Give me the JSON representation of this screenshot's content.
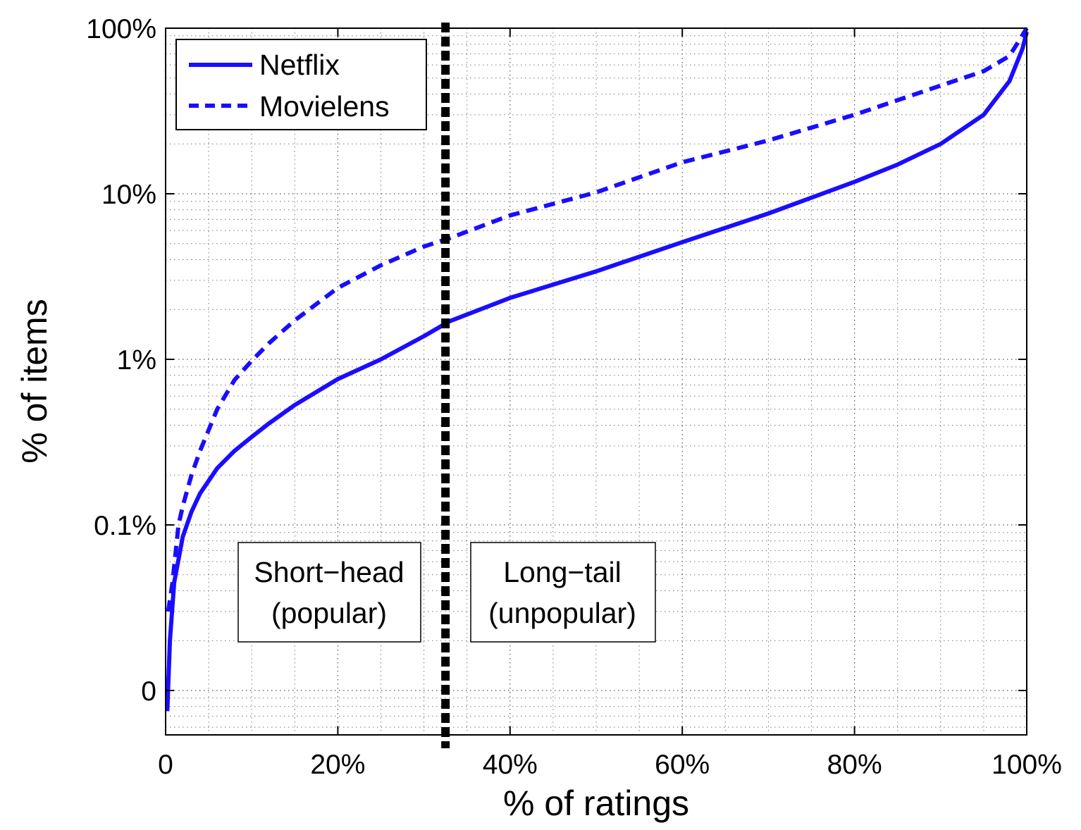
{
  "chart_data": {
    "type": "line",
    "xlabel": "% of ratings",
    "ylabel": "% of items",
    "xlim": [
      0,
      100
    ],
    "ylim_log_decades": [
      -2.15,
      2.0
    ],
    "y_scale": "log",
    "grid": true,
    "legend_position": "top-left",
    "x_ticks": [
      {
        "value": 0,
        "label": "0"
      },
      {
        "value": 20,
        "label": "20%"
      },
      {
        "value": 40,
        "label": "40%"
      },
      {
        "value": 60,
        "label": "60%"
      },
      {
        "value": 80,
        "label": "80%"
      },
      {
        "value": 100,
        "label": "100%"
      }
    ],
    "y_ticks": [
      {
        "value": 100,
        "label": "100%"
      },
      {
        "value": 10,
        "label": "10%"
      },
      {
        "value": 1,
        "label": "1%"
      },
      {
        "value": 0.1,
        "label": "0.1%"
      },
      {
        "value": 0.01,
        "label": "0"
      }
    ],
    "series": [
      {
        "name": "Netflix",
        "style": "solid",
        "color": "#1a0dff",
        "points": [
          [
            0.2,
            0.0075
          ],
          [
            0.5,
            0.02
          ],
          [
            1,
            0.045
          ],
          [
            2,
            0.085
          ],
          [
            3,
            0.12
          ],
          [
            4,
            0.155
          ],
          [
            6,
            0.22
          ],
          [
            8,
            0.28
          ],
          [
            10,
            0.34
          ],
          [
            12,
            0.41
          ],
          [
            15,
            0.53
          ],
          [
            20,
            0.76
          ],
          [
            25,
            1.0
          ],
          [
            30,
            1.38
          ],
          [
            33,
            1.7
          ],
          [
            40,
            2.35
          ],
          [
            50,
            3.4
          ],
          [
            60,
            5.1
          ],
          [
            70,
            7.6
          ],
          [
            80,
            11.8
          ],
          [
            85,
            15.0
          ],
          [
            90,
            20.0
          ],
          [
            95,
            30.0
          ],
          [
            98,
            48.0
          ],
          [
            99.5,
            75.0
          ],
          [
            100,
            95.0
          ]
        ]
      },
      {
        "name": "Movielens",
        "style": "dashed",
        "color": "#1a0dff",
        "points": [
          [
            0.3,
            0.03
          ],
          [
            0.8,
            0.045
          ],
          [
            1.5,
            0.1
          ],
          [
            2,
            0.13
          ],
          [
            3,
            0.2
          ],
          [
            4,
            0.28
          ],
          [
            6,
            0.5
          ],
          [
            8,
            0.75
          ],
          [
            10,
            0.98
          ],
          [
            12,
            1.25
          ],
          [
            15,
            1.72
          ],
          [
            20,
            2.7
          ],
          [
            25,
            3.7
          ],
          [
            30,
            4.8
          ],
          [
            33,
            5.4
          ],
          [
            40,
            7.4
          ],
          [
            50,
            10.2
          ],
          [
            60,
            15.5
          ],
          [
            70,
            21.0
          ],
          [
            80,
            30.0
          ],
          [
            90,
            45.0
          ],
          [
            95,
            55.0
          ],
          [
            98,
            68.0
          ],
          [
            100,
            100.0
          ]
        ]
      }
    ],
    "divider": {
      "x": 32.5,
      "style": "dotted-thick",
      "color": "#000000"
    },
    "annotations": [
      {
        "line1": "Short−head",
        "line2": "(popular)"
      },
      {
        "line1": "Long−tail",
        "line2": "(unpopular)"
      }
    ]
  }
}
